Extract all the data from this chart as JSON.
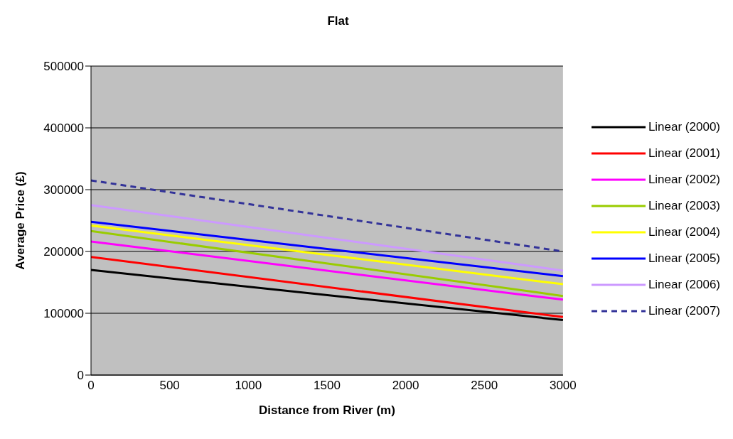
{
  "chart_data": {
    "type": "line",
    "title": "Flat",
    "xlabel": "Distance from River (m)",
    "ylabel": "Average Price (£)",
    "x": [
      0,
      3000
    ],
    "series": [
      {
        "name": "Linear (2000)",
        "color": "#000000",
        "values": [
          170000,
          89000
        ]
      },
      {
        "name": "Linear (2001)",
        "color": "#ff0000",
        "values": [
          191000,
          94000
        ]
      },
      {
        "name": "Linear (2002)",
        "color": "#ff00ff",
        "values": [
          216000,
          122000
        ]
      },
      {
        "name": "Linear (2003)",
        "color": "#99cc00",
        "values": [
          233000,
          128000
        ]
      },
      {
        "name": "Linear (2004)",
        "color": "#ffff00",
        "values": [
          242000,
          147000
        ]
      },
      {
        "name": "Linear (2005)",
        "color": "#0000ff",
        "values": [
          248000,
          160000
        ]
      },
      {
        "name": "Linear (2006)",
        "color": "#cc99ff",
        "values": [
          275000,
          169000
        ]
      },
      {
        "name": "Linear (2007)",
        "color": "#333399",
        "values": [
          315000,
          200000
        ],
        "line_style": "dashed"
      }
    ],
    "xlim": [
      0,
      3000
    ],
    "xticks": [
      0,
      500,
      1000,
      1500,
      2000,
      2500,
      3000
    ],
    "ylim": [
      0,
      500000
    ],
    "yticks": [
      0,
      100000,
      200000,
      300000,
      400000,
      500000
    ],
    "grid": "y",
    "legend": "right",
    "marker": "none",
    "line_style": "solid"
  }
}
